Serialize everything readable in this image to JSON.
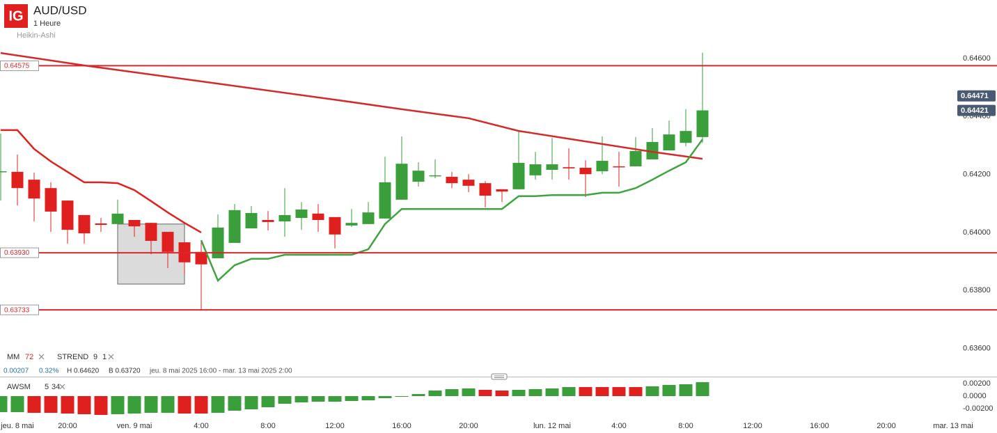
{
  "header": {
    "logo": "IG",
    "symbol": "AUD/USD",
    "interval": "1 Heure",
    "style": "Heikin-Ashi"
  },
  "legend": {
    "mm": {
      "name": "MM",
      "period": 72
    },
    "strend": {
      "name": "STREND",
      "period": 9,
      "multiplier": 1
    }
  },
  "info": [
    "0.00207",
    "0.32%",
    "H 0.64620",
    "B 0.63720",
    "jeu. 8 mai 2025 16:00 - mar. 13 mai 2025 2:00"
  ],
  "chart_data": [
    {
      "type": "candlestick",
      "x": [
        0,
        1,
        2,
        3,
        4,
        5,
        6,
        7,
        8,
        9,
        10,
        11,
        12,
        13,
        14,
        15,
        16,
        17,
        18,
        19,
        20,
        21,
        22,
        23,
        24,
        25,
        26,
        27,
        28,
        29,
        30,
        31,
        32,
        33,
        34,
        35,
        36,
        37,
        38,
        39,
        40,
        41,
        42
      ],
      "open": [
        0.64209,
        0.64209,
        0.64182,
        0.64153,
        0.6411,
        0.6406,
        0.64031,
        0.64029,
        0.64043,
        0.64033,
        0.64002,
        0.63966,
        0.63933,
        0.63911,
        0.63964,
        0.64014,
        0.64043,
        0.64038,
        0.6405,
        0.64065,
        0.64053,
        0.64024,
        0.64029,
        0.64048,
        0.64113,
        0.64175,
        0.64194,
        0.64192,
        0.64182,
        0.6417,
        0.64149,
        0.64149,
        0.64197,
        0.64216,
        0.64225,
        0.64223,
        0.64211,
        0.64228,
        0.64228,
        0.64252,
        0.64283,
        0.64309,
        0.64329
      ],
      "high": [
        0.64341,
        0.64269,
        0.64206,
        0.64173,
        0.6411,
        0.6406,
        0.6405,
        0.64113,
        0.64043,
        0.64033,
        0.64002,
        0.63966,
        0.63973,
        0.64062,
        0.64098,
        0.64091,
        0.64074,
        0.64153,
        0.64105,
        0.64098,
        0.64053,
        0.64081,
        0.64105,
        0.64261,
        0.64331,
        0.64242,
        0.64252,
        0.64209,
        0.64201,
        0.64177,
        0.64149,
        0.6435,
        0.64278,
        0.64326,
        0.6429,
        0.64249,
        0.64331,
        0.64278,
        0.64329,
        0.6436,
        0.64386,
        0.64425,
        0.6462
      ],
      "low": [
        0.6411,
        0.64093,
        0.64038,
        0.64002,
        0.63961,
        0.63961,
        0.64002,
        0.64029,
        0.63985,
        0.63925,
        0.63877,
        0.63853,
        0.63733,
        0.63911,
        0.63964,
        0.64014,
        0.64007,
        0.63985,
        0.64009,
        0.64002,
        0.63945,
        0.64019,
        0.64029,
        0.64048,
        0.64113,
        0.64158,
        0.64187,
        0.64153,
        0.64139,
        0.64086,
        0.64105,
        0.64149,
        0.64182,
        0.64182,
        0.64182,
        0.64122,
        0.64201,
        0.64158,
        0.64228,
        0.64252,
        0.64283,
        0.64297,
        0.64309
      ],
      "close": [
        0.64211,
        0.64153,
        0.64117,
        0.64072,
        0.64009,
        0.63997,
        0.64026,
        0.64065,
        0.64021,
        0.63971,
        0.63933,
        0.63897,
        0.6389,
        0.64017,
        0.64077,
        0.64067,
        0.64036,
        0.6406,
        0.64079,
        0.64043,
        0.63993,
        0.64033,
        0.64069,
        0.64173,
        0.64237,
        0.64213,
        0.64197,
        0.6417,
        0.64161,
        0.64127,
        0.64141,
        0.6424,
        0.64235,
        0.64235,
        0.64221,
        0.64201,
        0.64247,
        0.64225,
        0.64281,
        0.64312,
        0.64338,
        0.6435,
        0.64421
      ],
      "up_color": "#3a9e3a",
      "down_color": "#e0201f",
      "ylim": [
        0.635052,
        0.648017
      ],
      "yticks": [
        {
          "value": 0.646,
          "label": "0.64600"
        },
        {
          "value": 0.644,
          "label": "0.64400"
        },
        {
          "value": 0.642,
          "label": "0.64200"
        },
        {
          "value": 0.64,
          "label": "0.64000"
        },
        {
          "value": 0.638,
          "label": "0.63800"
        },
        {
          "value": 0.636,
          "label": "0.63600"
        }
      ],
      "xlim": [
        -0.0417,
        59.625
      ],
      "xticks": [
        {
          "value": 1,
          "label": "jeu. 8 mai"
        },
        {
          "value": 4,
          "label": "20:00"
        },
        {
          "value": 8,
          "label": "ven. 9 mai"
        },
        {
          "value": 12,
          "label": "4:00"
        },
        {
          "value": 16,
          "label": "8:00"
        },
        {
          "value": 20,
          "label": "12:00"
        },
        {
          "value": 24,
          "label": "16:00"
        },
        {
          "value": 28,
          "label": "20:00"
        },
        {
          "value": 33,
          "label": "lun. 12 mai"
        },
        {
          "value": 37,
          "label": "4:00"
        },
        {
          "value": 41,
          "label": "8:00"
        },
        {
          "value": 45,
          "label": "12:00"
        },
        {
          "value": 49,
          "label": "16:00"
        },
        {
          "value": 53,
          "label": "20:00"
        },
        {
          "value": 57,
          "label": "mar. 13 mai"
        }
      ],
      "levels": [
        0.64575,
        {
          "value": 0.6393,
          "label": "0.63930"
        },
        0.63733
      ],
      "level_color": "#d9272e",
      "price_badges": [
        0.64471,
        0.64421
      ],
      "highlight_box": {
        "x": [
          7,
          11
        ],
        "y": [
          0.64029,
          0.63822
        ]
      },
      "mm_line": {
        "color": "#d42a2a",
        "x": [
          0,
          5,
          12,
          20,
          24,
          28,
          31,
          35,
          39,
          42
        ],
        "values": [
          0.64619,
          0.64576,
          0.64521,
          0.64458,
          0.64425,
          0.64394,
          0.6435,
          0.64314,
          0.64278,
          0.64254
        ]
      },
      "strend_line": {
        "down_color": "#e0201f",
        "up_color": "#3fa33f",
        "x": [
          0,
          1,
          2,
          3,
          4,
          5,
          6,
          7,
          8,
          9,
          10,
          11,
          12,
          13,
          14,
          15,
          16,
          17,
          18,
          19,
          20,
          21,
          22,
          23,
          24,
          25,
          26,
          27,
          28,
          29,
          30,
          31,
          32,
          33,
          34,
          35,
          36,
          37,
          38,
          39,
          40,
          41,
          42
        ],
        "down_values": [
          0.64353,
          0.64353,
          0.64288,
          0.64245,
          0.64209,
          0.64173,
          0.64173,
          0.6417,
          0.64146,
          0.64108,
          0.64069,
          0.64033,
          0.64,
          null,
          null,
          null,
          null,
          null,
          null,
          null,
          null,
          null,
          null,
          null,
          null,
          null,
          null,
          null,
          null,
          null,
          null,
          null,
          null,
          null,
          null,
          null,
          null,
          null,
          null,
          null,
          null,
          null,
          null
        ],
        "up_values": [
          null,
          null,
          null,
          null,
          null,
          null,
          null,
          null,
          null,
          null,
          null,
          null,
          0.63973,
          0.63834,
          0.63887,
          0.63909,
          0.63909,
          0.63923,
          0.63923,
          0.63923,
          0.63923,
          0.63923,
          0.63942,
          0.64029,
          0.64081,
          0.64081,
          0.64081,
          0.64081,
          0.64081,
          0.64081,
          0.64081,
          0.64125,
          0.64125,
          0.64129,
          0.64129,
          0.64129,
          0.64137,
          0.64137,
          0.64153,
          0.64182,
          0.64213,
          0.64242,
          0.64321
        ]
      }
    },
    {
      "type": "bar",
      "name": "AWSM",
      "fast": 5,
      "slow": 34,
      "x": [
        0,
        1,
        2,
        3,
        4,
        5,
        6,
        7,
        8,
        9,
        10,
        11,
        12,
        13,
        14,
        15,
        16,
        17,
        18,
        19,
        20,
        21,
        22,
        23,
        24,
        25,
        26,
        27,
        28,
        29,
        30,
        31,
        32,
        33,
        34,
        35,
        36,
        37,
        38,
        39,
        40,
        41,
        42
      ],
      "values": [
        -0.00256,
        -0.00256,
        -0.00267,
        -0.00267,
        -0.00278,
        -0.00289,
        -0.003,
        -0.00289,
        -0.00278,
        -0.00267,
        -0.00267,
        -0.00278,
        -0.00278,
        -0.00267,
        -0.00233,
        -0.00211,
        -0.00178,
        -0.00122,
        -0.001,
        -0.00089,
        -0.00089,
        -0.00078,
        -0.00067,
        -0.00033,
        -0.00011,
        0.00033,
        0.00089,
        0.00111,
        0.00122,
        0.001,
        0.00089,
        0.001,
        0.00111,
        0.00122,
        0.00144,
        0.00144,
        0.00144,
        0.00144,
        0.00144,
        0.00156,
        0.00178,
        0.00189,
        0.00222
      ],
      "colors": [
        "#3a9e3a",
        "#3a9e3a",
        "#e0201f",
        "#e0201f",
        "#e0201f",
        "#e0201f",
        "#e0201f",
        "#3a9e3a",
        "#3a9e3a",
        "#3a9e3a",
        "#3a9e3a",
        "#e0201f",
        "#e0201f",
        "#3a9e3a",
        "#3a9e3a",
        "#3a9e3a",
        "#3a9e3a",
        "#3a9e3a",
        "#3a9e3a",
        "#3a9e3a",
        "#3a9e3a",
        "#3a9e3a",
        "#3a9e3a",
        "#3a9e3a",
        "#3a9e3a",
        "#3a9e3a",
        "#3a9e3a",
        "#3a9e3a",
        "#3a9e3a",
        "#e0201f",
        "#e0201f",
        "#3a9e3a",
        "#3a9e3a",
        "#3a9e3a",
        "#3a9e3a",
        "#e0201f",
        "#e0201f",
        "#e0201f",
        "#e0201f",
        "#3a9e3a",
        "#3a9e3a",
        "#3a9e3a",
        "#3a9e3a"
      ],
      "ylim": [
        -0.003,
        0.003
      ],
      "yticks": [
        {
          "value": 0.002,
          "label": "0.00200"
        },
        {
          "value": 0,
          "label": "0.0000"
        },
        {
          "value": -0.002,
          "label": "-0.00200"
        }
      ]
    }
  ]
}
